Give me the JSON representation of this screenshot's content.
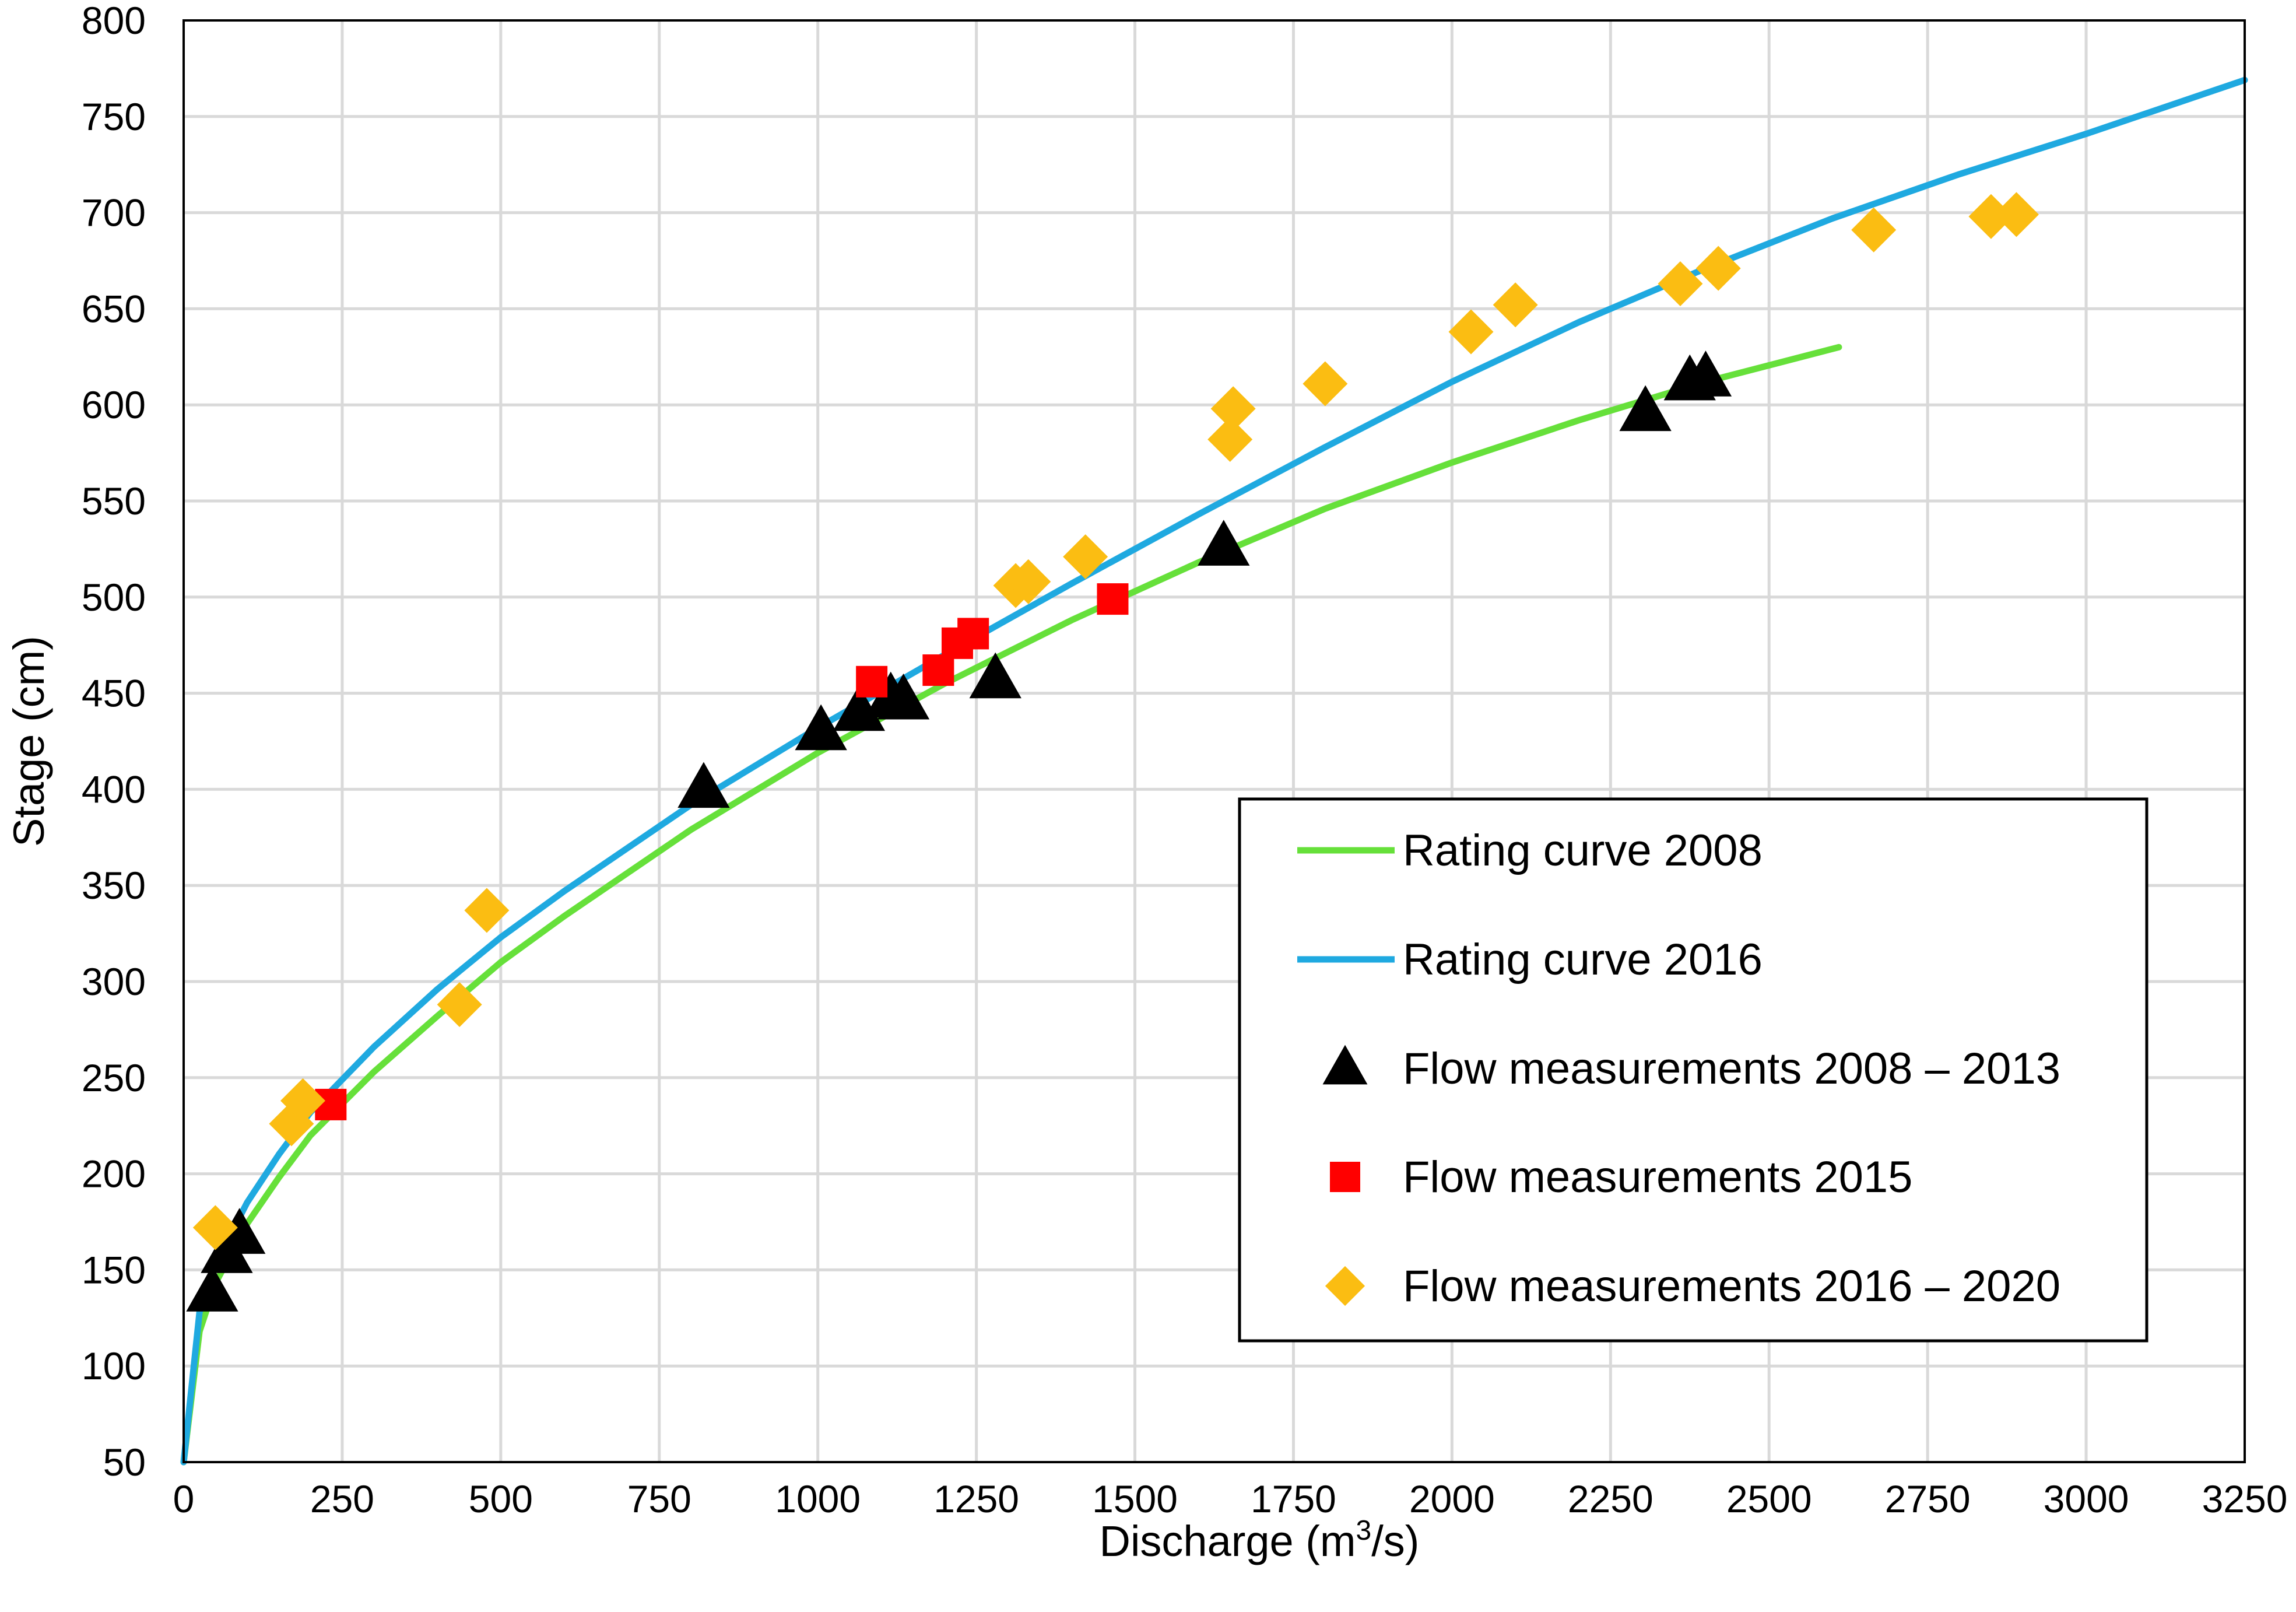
{
  "chart_data": {
    "type": "scatter",
    "title": "",
    "xlabel": "Discharge (m3/s)",
    "xlabel_base": "Discharge (m",
    "xlabel_sup": "3",
    "xlabel_tail": "/s)",
    "ylabel": "Stage (cm)",
    "xlim": [
      0,
      3250
    ],
    "ylim": [
      50,
      800
    ],
    "xticks": [
      0,
      250,
      500,
      750,
      1000,
      1250,
      1500,
      1750,
      2000,
      2250,
      2500,
      2750,
      3000,
      3250
    ],
    "yticks": [
      50,
      100,
      150,
      200,
      250,
      300,
      350,
      400,
      450,
      500,
      550,
      600,
      650,
      700,
      750,
      800
    ],
    "grid": true,
    "legend_position": "center-right",
    "series": [
      {
        "name": "Rating curve 2008",
        "kind": "line",
        "color": "#66e03a",
        "x": [
          0,
          25,
          50,
          100,
          150,
          200,
          300,
          400,
          500,
          600,
          800,
          1000,
          1200,
          1400,
          1600,
          1800,
          2000,
          2200,
          2400,
          2610
        ],
        "y": [
          50,
          118,
          143,
          174,
          198,
          220,
          253,
          282,
          310,
          334,
          379,
          419,
          455,
          488,
          518,
          546,
          570,
          592,
          612,
          630
        ]
      },
      {
        "name": "Rating curve 2016",
        "kind": "line",
        "color": "#1fa9e0",
        "x": [
          0,
          25,
          50,
          100,
          150,
          200,
          300,
          400,
          500,
          600,
          800,
          1000,
          1200,
          1400,
          1600,
          1800,
          2000,
          2200,
          2400,
          2600,
          2800,
          3000,
          3250
        ],
        "y": [
          50,
          128,
          153,
          185,
          210,
          232,
          266,
          296,
          323,
          347,
          392,
          432,
          470,
          507,
          543,
          578,
          612,
          643,
          671,
          697,
          720,
          741,
          769
        ]
      },
      {
        "name": "Flow measurements 2008 – 2013",
        "kind": "marker",
        "marker": "triangle",
        "color": "#000000",
        "x": [
          45,
          68,
          88,
          820,
          1005,
          1065,
          1115,
          1135,
          1280,
          1640,
          2305,
          2375,
          2400
        ],
        "y": [
          138,
          158,
          168,
          400,
          430,
          440,
          447,
          446,
          457,
          526,
          596,
          612,
          614
        ]
      },
      {
        "name": "Flow measurements 2015",
        "kind": "marker",
        "marker": "square",
        "color": "#ff0000",
        "x": [
          232,
          1085,
          1190,
          1220,
          1245,
          1465
        ],
        "y": [
          236,
          456,
          462,
          476,
          481,
          499
        ]
      },
      {
        "name": "Flow measurements 2016 – 2020",
        "kind": "marker",
        "marker": "diamond",
        "color": "#fbbd12",
        "x": [
          50,
          170,
          188,
          435,
          478,
          1312,
          1332,
          1422,
          1650,
          1655,
          1800,
          2030,
          2100,
          2360,
          2420,
          2665,
          2850,
          2890
        ],
        "y": [
          172,
          226,
          238,
          288,
          337,
          506,
          508,
          521,
          582,
          598,
          611,
          638,
          652,
          663,
          671,
          691,
          698,
          699
        ]
      }
    ],
    "legend_labels": [
      "Rating curve 2008",
      "Rating curve 2016",
      "Flow measurements 2008 – 2013",
      "Flow measurements 2015",
      "Flow measurements 2016 – 2020"
    ]
  }
}
